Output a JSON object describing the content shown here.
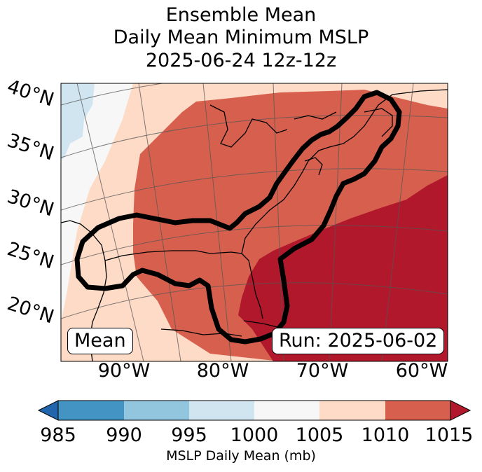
{
  "title": {
    "line1": "Ensemble Mean",
    "line2": "Daily Mean Minimum MSLP",
    "line3": "2025-06-24 12z-12z"
  },
  "badges": {
    "left": "Mean",
    "right": "Run: 2025-06-02"
  },
  "latitude_labels": [
    "40°N",
    "35°N",
    "30°N",
    "25°N",
    "20°N"
  ],
  "longitude_labels": [
    "90°W",
    "80°W",
    "70°W",
    "60°W"
  ],
  "colorbar": {
    "ticks": [
      "985",
      "990",
      "995",
      "1000",
      "1005",
      "1010",
      "1015"
    ],
    "label": "MSLP Daily Mean (mb)",
    "colors": [
      "#2166ac",
      "#4393c3",
      "#92c5de",
      "#d1e5f0",
      "#f7f7f7",
      "#fddbc7",
      "#d6604d",
      "#b2182b"
    ]
  },
  "map_colors": {
    "ocean_land_1005_1010": "#fddbc7",
    "band_1010_1015": "#d6604d",
    "above_1015": "#b2182b",
    "band_1000_1005": "#f7f7f7",
    "band_995_1000": "#d1e5f0",
    "contour": "#000000"
  }
}
